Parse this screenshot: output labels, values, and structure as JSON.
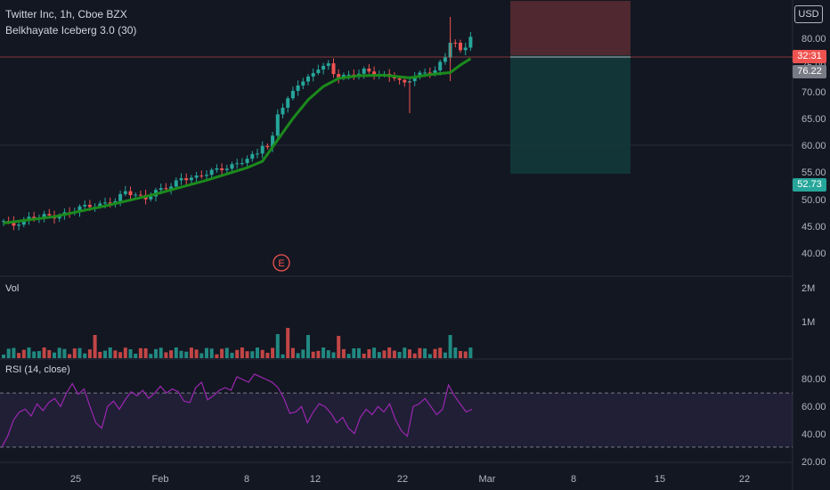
{
  "header": {
    "symbol_line": "Twitter Inc, 1h, Cboe BZX",
    "indicator_line": "Belkhayate Iceberg 3.0 (30)"
  },
  "currency_button": "USD",
  "panes": {
    "volume_label": "Vol",
    "rsi_label": "RSI (14, close)"
  },
  "earnings_marker": "E",
  "price_tags": {
    "stop": "32:31",
    "last": "76.22",
    "target": "52.73"
  },
  "colors": {
    "background": "#131722",
    "up": "#26a69a",
    "down": "#ef5350",
    "ma": "#1b8a1b",
    "rsi": "#9c27b0",
    "stop_zone": "#5b2c33",
    "target_zone": "#13393b"
  },
  "chart_data": [
    {
      "type": "candlestick",
      "title": "Twitter Inc, 1h, Cboe BZX",
      "price_axis": {
        "ticks": [
          "80.00",
          "75.00",
          "70.00",
          "65.00",
          "60.00",
          "55.00",
          "50.00",
          "45.00",
          "40.00"
        ],
        "range": [
          36,
          87
        ],
        "scale": "log-like"
      },
      "time_axis": {
        "ticks": [
          "25",
          "Feb",
          "8",
          "12",
          "22",
          "Mar",
          "8",
          "15",
          "22"
        ]
      },
      "price_path": [
        [
          0,
          46.0
        ],
        [
          2,
          45.2
        ],
        [
          5,
          46.5
        ],
        [
          8,
          47.0
        ],
        [
          10,
          46.8
        ],
        [
          13,
          47.5
        ],
        [
          15,
          48.6
        ],
        [
          19,
          49.0
        ],
        [
          22,
          49.8
        ],
        [
          24,
          51.5
        ],
        [
          26,
          50.8
        ],
        [
          28,
          50.2
        ],
        [
          30,
          51.5
        ],
        [
          33,
          52.5
        ],
        [
          35,
          53.8
        ],
        [
          38,
          54.0
        ],
        [
          41,
          55.2
        ],
        [
          44,
          55.8
        ],
        [
          46,
          56.5
        ],
        [
          48,
          57.5
        ],
        [
          50,
          58.5
        ],
        [
          51,
          60.2
        ],
        [
          52,
          59.5
        ],
        [
          53,
          61.5
        ],
        [
          54,
          66.0
        ],
        [
          56,
          68.5
        ],
        [
          58,
          71.5
        ],
        [
          60,
          72.5
        ],
        [
          62,
          74.5
        ],
        [
          64,
          75.0
        ],
        [
          65,
          73.5
        ],
        [
          66,
          72.8
        ],
        [
          68,
          73.0
        ],
        [
          70,
          73.5
        ],
        [
          71,
          74.0
        ],
        [
          73,
          73.5
        ],
        [
          75,
          73.0
        ],
        [
          77,
          72.8
        ],
        [
          78,
          72.0
        ],
        [
          79,
          71.5
        ],
        [
          81,
          73.0
        ],
        [
          83,
          73.5
        ],
        [
          85,
          74.0
        ],
        [
          87,
          76.5
        ],
        [
          88,
          79.5
        ],
        [
          89,
          79.0
        ],
        [
          90,
          77.5
        ],
        [
          91,
          78.5
        ],
        [
          92,
          80.5
        ]
      ],
      "indicator": {
        "name": "Belkhayate Iceberg 3.0 (30)",
        "color": "#1b8a1b",
        "path": [
          [
            0,
            45.6
          ],
          [
            10,
            46.8
          ],
          [
            20,
            48.8
          ],
          [
            30,
            51.0
          ],
          [
            40,
            53.5
          ],
          [
            48,
            55.8
          ],
          [
            51,
            57.0
          ],
          [
            54,
            61.0
          ],
          [
            57,
            65.0
          ],
          [
            60,
            68.5
          ],
          [
            63,
            71.0
          ],
          [
            66,
            72.5
          ],
          [
            70,
            73.0
          ],
          [
            75,
            73.1
          ],
          [
            80,
            72.6
          ],
          [
            84,
            73.2
          ],
          [
            88,
            73.6
          ],
          [
            90,
            75.0
          ],
          [
            92,
            76.2
          ]
        ]
      },
      "position_tool": {
        "stop_price": 86.0,
        "entry_price": 76.8,
        "target_price": 52.73
      },
      "earnings_event": "E"
    },
    {
      "type": "bar",
      "title": "Vol",
      "axis_ticks": [
        "2M",
        "1M"
      ],
      "ylim": [
        0,
        2200000
      ]
    },
    {
      "type": "line",
      "title": "RSI (14, close)",
      "axis_ticks": [
        "80.00",
        "60.00",
        "40.00",
        "20.00"
      ],
      "ylim": [
        15,
        95
      ],
      "bands": {
        "upper": 70,
        "lower": 30
      },
      "values": [
        30,
        38,
        50,
        56,
        58,
        53,
        62,
        57,
        63,
        66,
        60,
        70,
        77,
        69,
        73,
        60,
        48,
        44,
        60,
        64,
        58,
        65,
        71,
        68,
        72,
        66,
        70,
        75,
        70,
        73,
        71,
        64,
        63,
        74,
        78,
        65,
        68,
        72,
        74,
        72,
        82,
        80,
        78,
        84,
        82,
        80,
        78,
        74,
        66,
        55,
        56,
        60,
        48,
        56,
        62,
        60,
        55,
        48,
        52,
        44,
        40,
        52,
        58,
        54,
        60,
        56,
        62,
        50,
        42,
        38,
        60,
        62,
        66,
        60,
        54,
        58,
        76,
        68,
        62,
        56,
        58
      ]
    }
  ]
}
